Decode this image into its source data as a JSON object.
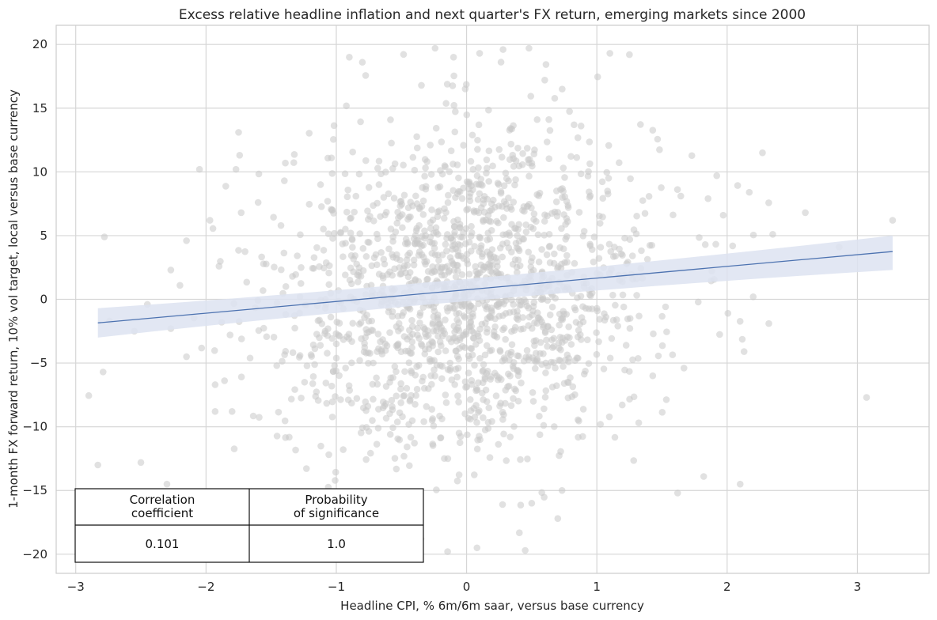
{
  "chart_data": {
    "type": "scatter",
    "title": "Excess relative headline inflation and next quarter's FX return, emerging markets since 2000",
    "xlabel": "Headline CPI, % 6m/6m saar, versus base currency",
    "ylabel": "1-month FX forward return, 10% vol target, local versus base currency",
    "xlim": [
      -3.15,
      3.55
    ],
    "ylim": [
      -21.5,
      21.5
    ],
    "xticks": [
      -3,
      -2,
      -1,
      0,
      1,
      2,
      3
    ],
    "yticks": [
      -20,
      -15,
      -10,
      -5,
      0,
      5,
      10,
      15,
      20
    ],
    "xtick_labels": [
      "−3",
      "−2",
      "−1",
      "0",
      "1",
      "2",
      "3"
    ],
    "ytick_labels": [
      "−20",
      "−15",
      "−10",
      "−5",
      "0",
      "5",
      "10",
      "15",
      "20"
    ],
    "grid": true,
    "point_color": "#c8c8c8",
    "line_color": "#4c72b0",
    "band_color": "#dde3f1",
    "point_distribution": {
      "count": 1650,
      "x_mean": 0.0,
      "x_sd": 0.72,
      "y_mean": 0.6,
      "y_sd": 6.3
    },
    "scatter_points": [
      {
        "x": -2.83,
        "y": -13.0
      },
      {
        "x": -2.78,
        "y": 4.9
      },
      {
        "x": -2.79,
        "y": -5.7
      },
      {
        "x": -2.74,
        "y": -1.7
      },
      {
        "x": -2.55,
        "y": -2.5
      },
      {
        "x": -2.5,
        "y": -12.8
      },
      {
        "x": -2.45,
        "y": -0.4
      },
      {
        "x": -2.3,
        "y": -14.5
      },
      {
        "x": -2.27,
        "y": 2.3
      },
      {
        "x": -2.27,
        "y": -2.3
      },
      {
        "x": -2.2,
        "y": 1.1
      },
      {
        "x": -2.15,
        "y": 4.6
      },
      {
        "x": -2.15,
        "y": -4.5
      },
      {
        "x": -2.05,
        "y": 10.2
      },
      {
        "x": -1.97,
        "y": 6.2
      },
      {
        "x": -1.93,
        "y": -8.8
      },
      {
        "x": -1.93,
        "y": -6.7
      },
      {
        "x": -1.9,
        "y": 2.6
      },
      {
        "x": -1.88,
        "y": -1.8
      },
      {
        "x": -1.8,
        "y": -8.8
      },
      {
        "x": -1.77,
        "y": 10.2
      },
      {
        "x": -1.75,
        "y": 13.1
      },
      {
        "x": -1.73,
        "y": 6.8
      },
      {
        "x": -1.6,
        "y": 7.6
      },
      {
        "x": 1.62,
        "y": -15.2
      },
      {
        "x": 1.82,
        "y": -13.9
      },
      {
        "x": 1.92,
        "y": 9.7
      },
      {
        "x": 1.97,
        "y": 6.6
      },
      {
        "x": 2.1,
        "y": -14.5
      },
      {
        "x": 2.13,
        "y": -4.1
      },
      {
        "x": 2.17,
        "y": 8.4
      },
      {
        "x": 2.2,
        "y": 0.2
      },
      {
        "x": 2.32,
        "y": -1.9
      },
      {
        "x": 2.35,
        "y": 5.1
      },
      {
        "x": 2.6,
        "y": 6.8
      },
      {
        "x": 2.86,
        "y": 4.1
      },
      {
        "x": 3.07,
        "y": -7.7
      },
      {
        "x": 3.27,
        "y": 6.2
      },
      {
        "x": -0.9,
        "y": 19.0
      },
      {
        "x": -0.8,
        "y": 18.6
      },
      {
        "x": -0.1,
        "y": 19.0
      },
      {
        "x": 0.1,
        "y": 19.3
      },
      {
        "x": 0.28,
        "y": 19.6
      },
      {
        "x": 1.1,
        "y": 19.3
      },
      {
        "x": 1.25,
        "y": 19.2
      },
      {
        "x": 0.6,
        "y": 17.2
      },
      {
        "x": -0.6,
        "y": -19.0
      },
      {
        "x": -0.35,
        "y": -18.8
      },
      {
        "x": 0.08,
        "y": -19.5
      },
      {
        "x": 0.45,
        "y": -19.7
      },
      {
        "x": 0.7,
        "y": -17.2
      },
      {
        "x": 0.5,
        "y": -16.0
      }
    ],
    "regression": {
      "x": [
        -2.83,
        3.27
      ],
      "y": [
        -1.85,
        3.75
      ],
      "ci_lower": [
        -3.0,
        2.3
      ],
      "ci_upper": [
        -0.7,
        5.0
      ]
    },
    "stats_table": {
      "headers": [
        "Correlation\ncoefficient",
        "Probability\nof significance"
      ],
      "values": [
        "0.101",
        "1.0"
      ]
    }
  }
}
